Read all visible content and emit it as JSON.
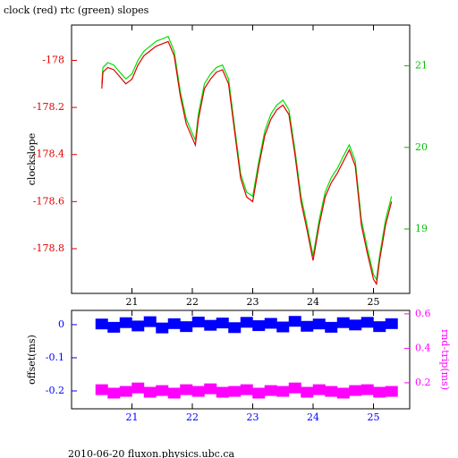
{
  "chart_data": [
    {
      "type": "line",
      "title": "clock (red) rtc (green) slopes",
      "ylabel": "clockslope",
      "xlim": [
        20,
        25.6
      ],
      "xticks": [
        21,
        22,
        23,
        24,
        25
      ],
      "x_color": "#000000",
      "ylim": [
        -178.99,
        -177.85
      ],
      "yticks": [
        -178,
        -178.2,
        -178.4,
        -178.6,
        -178.8
      ],
      "y_color": "#e00000",
      "y2lim": [
        18.21,
        21.5
      ],
      "y2ticks": [
        19,
        20,
        21
      ],
      "y2_color": "#00c000",
      "x": [
        20.5,
        20.52,
        20.6,
        20.7,
        20.8,
        20.9,
        21.0,
        21.1,
        21.2,
        21.3,
        21.4,
        21.5,
        21.6,
        21.7,
        21.8,
        21.9,
        22.0,
        22.05,
        22.1,
        22.2,
        22.3,
        22.4,
        22.5,
        22.6,
        22.7,
        22.8,
        22.9,
        23.0,
        23.1,
        23.2,
        23.3,
        23.4,
        23.5,
        23.6,
        23.7,
        23.8,
        23.9,
        24.0,
        24.1,
        24.2,
        24.3,
        24.4,
        24.5,
        24.6,
        24.7,
        24.8,
        24.9,
        25.0,
        25.05,
        25.1,
        25.2,
        25.3
      ],
      "series": [
        {
          "color": "#00e000",
          "axis": "y2",
          "values": [
            20.78,
            20.98,
            21.04,
            21.01,
            20.92,
            20.84,
            20.9,
            21.07,
            21.18,
            21.24,
            21.3,
            21.33,
            21.36,
            21.18,
            20.69,
            20.35,
            20.17,
            20.09,
            20.41,
            20.78,
            20.9,
            20.98,
            21.01,
            20.84,
            20.26,
            19.68,
            19.45,
            19.4,
            19.83,
            20.2,
            20.41,
            20.52,
            20.58,
            20.46,
            19.97,
            19.4,
            19.05,
            18.67,
            19.11,
            19.45,
            19.63,
            19.74,
            19.89,
            20.03,
            19.83,
            19.11,
            18.76,
            18.44,
            18.38,
            18.67,
            19.11,
            19.4
          ]
        },
        {
          "color": "#e00000",
          "values": [
            -178.12,
            -178.05,
            -178.03,
            -178.04,
            -178.07,
            -178.1,
            -178.08,
            -178.02,
            -177.98,
            -177.96,
            -177.94,
            -177.93,
            -177.92,
            -177.98,
            -178.15,
            -178.27,
            -178.33,
            -178.36,
            -178.25,
            -178.12,
            -178.08,
            -178.05,
            -178.04,
            -178.1,
            -178.3,
            -178.5,
            -178.58,
            -178.6,
            -178.45,
            -178.32,
            -178.25,
            -178.21,
            -178.19,
            -178.23,
            -178.4,
            -178.6,
            -178.72,
            -178.85,
            -178.7,
            -178.58,
            -178.52,
            -178.48,
            -178.43,
            -178.38,
            -178.45,
            -178.7,
            -178.82,
            -178.93,
            -178.95,
            -178.85,
            -178.7,
            -178.6
          ]
        }
      ]
    },
    {
      "type": "scatter",
      "ylabel": "offset(ms)",
      "y2label": "rnd-trip(ms)",
      "xlim": [
        20,
        25.6
      ],
      "xticks": [
        21,
        22,
        23,
        24,
        25
      ],
      "x_color": "#0000ff",
      "ylim": [
        -0.254,
        0.043
      ],
      "yticks": [
        0,
        -0.1,
        -0.2
      ],
      "y_color": "#0000ff",
      "y2lim": [
        0.049,
        0.62
      ],
      "y2ticks": [
        0.2,
        0.4,
        0.6
      ],
      "y2_color": "#ff00ff",
      "x": [
        20.5,
        20.7,
        20.9,
        21.1,
        21.3,
        21.5,
        21.7,
        21.9,
        22.1,
        22.3,
        22.5,
        22.7,
        22.9,
        23.1,
        23.3,
        23.5,
        23.7,
        23.9,
        24.1,
        24.3,
        24.5,
        24.7,
        24.9,
        25.1,
        25.3
      ],
      "series": [
        {
          "color": "#0000ff",
          "values": [
            0.002,
            -0.008,
            0.006,
            -0.004,
            0.009,
            -0.01,
            0.003,
            -0.006,
            0.008,
            -0.002,
            0.005,
            -0.009,
            0.007,
            -0.003,
            0.004,
            -0.007,
            0.01,
            -0.005,
            0.002,
            -0.008,
            0.006,
            -0.001,
            0.007,
            -0.006,
            0.003
          ]
        },
        {
          "color": "#ff00ff",
          "axis": "y2",
          "values": [
            0.16,
            0.14,
            0.15,
            0.17,
            0.145,
            0.155,
            0.14,
            0.16,
            0.15,
            0.165,
            0.145,
            0.15,
            0.16,
            0.14,
            0.155,
            0.15,
            0.17,
            0.145,
            0.16,
            0.15,
            0.14,
            0.155,
            0.16,
            0.145,
            0.15
          ]
        }
      ]
    }
  ],
  "footer": "2010-06-20 fluxon.physics.ubc.ca"
}
